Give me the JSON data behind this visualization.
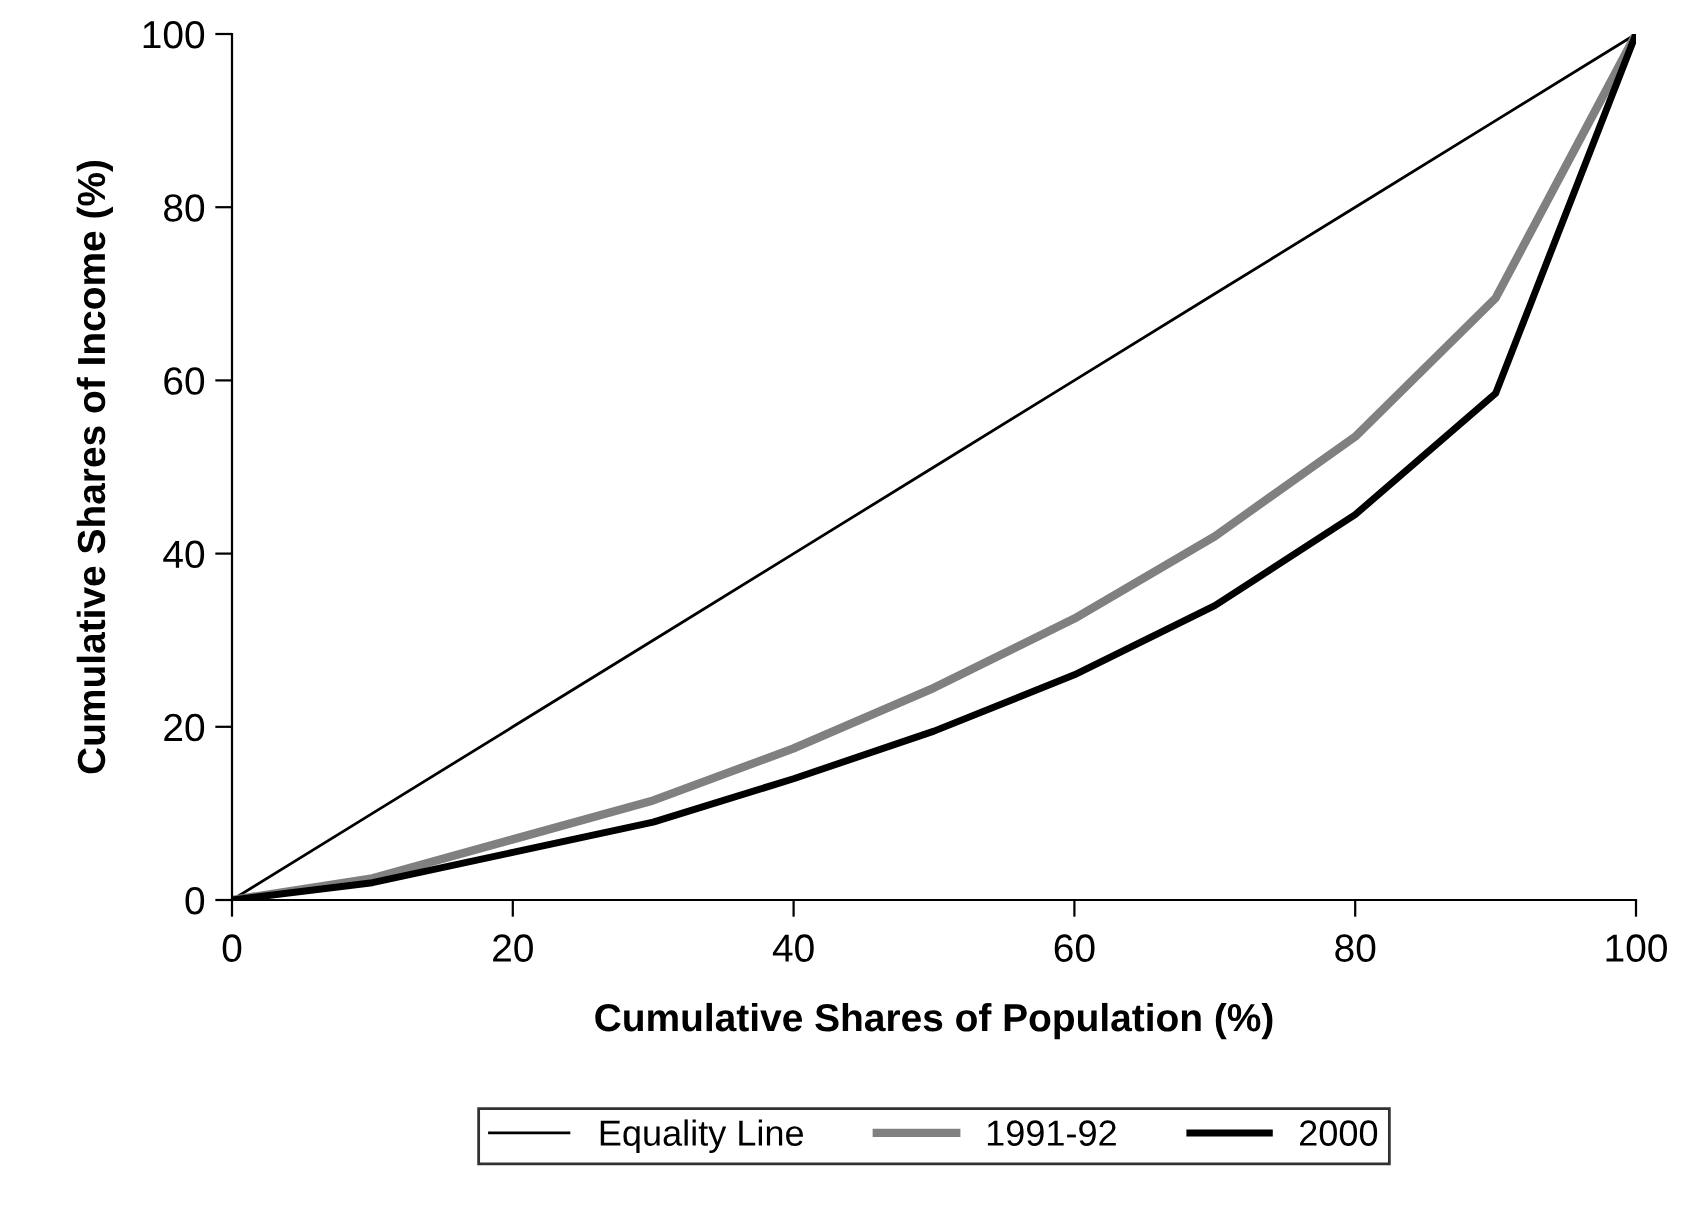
{
  "chart_data": {
    "type": "line",
    "xlabel": "Cumulative Shares of Population (%)",
    "ylabel": "Cumulative Shares of Income (%)",
    "x": [
      0,
      10,
      20,
      30,
      40,
      50,
      60,
      70,
      80,
      90,
      100
    ],
    "series": [
      {
        "name": "Equality Line",
        "color": "#000000",
        "values": [
          0,
          10,
          20,
          30,
          40,
          50,
          60,
          70,
          80,
          90,
          100
        ]
      },
      {
        "name": "1991-92",
        "color": "#808080",
        "values": [
          0,
          2.5,
          7,
          11.5,
          17.5,
          24.5,
          32.5,
          42,
          53.5,
          69.5,
          100
        ]
      },
      {
        "name": "2000",
        "color": "#000000",
        "values": [
          0,
          2,
          5.5,
          9,
          14,
          19.5,
          26,
          34,
          44.5,
          58.5,
          100
        ]
      }
    ],
    "xlim": [
      0,
      100
    ],
    "ylim": [
      0,
      100
    ],
    "xticks": [
      0,
      20,
      40,
      60,
      80,
      100
    ],
    "yticks": [
      0,
      20,
      40,
      60,
      80,
      100
    ],
    "grid": false,
    "legend": "bottom",
    "marker": "none",
    "line_style": "solid"
  }
}
